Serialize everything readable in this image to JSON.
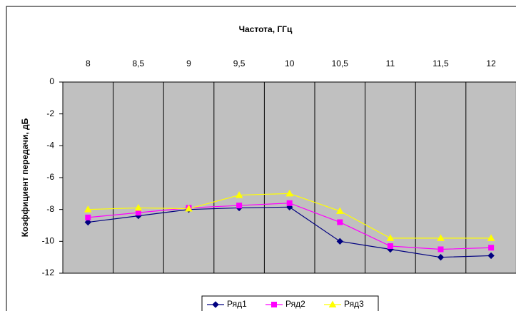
{
  "chart_data": {
    "type": "line",
    "title": "Частота, ГГц",
    "y_label": "Коэффициент передачи, дБ",
    "categories": [
      "8",
      "8,5",
      "9",
      "9,5",
      "10",
      "10,5",
      "11",
      "11,5",
      "12"
    ],
    "series": [
      {
        "name": "Ряд1",
        "color": "#000080",
        "marker": "diamond",
        "values": [
          -8.8,
          -8.4,
          -8.0,
          -7.9,
          -7.85,
          -10.0,
          -10.5,
          -11.0,
          -10.9
        ]
      },
      {
        "name": "Ряд2",
        "color": "#ff00ff",
        "marker": "square",
        "values": [
          -8.5,
          -8.2,
          -7.9,
          -7.75,
          -7.6,
          -8.8,
          -10.3,
          -10.5,
          -10.4
        ]
      },
      {
        "name": "Ряд3",
        "color": "#ffff00",
        "marker": "triangle",
        "values": [
          -8.0,
          -7.9,
          -7.95,
          -7.1,
          -7.0,
          -8.1,
          -9.8,
          -9.8,
          -9.8
        ]
      }
    ],
    "ylim": [
      -12,
      0
    ],
    "yticks": [
      0,
      -2,
      -4,
      -6,
      -8,
      -10,
      -12
    ],
    "grid": false,
    "legend": "bottom"
  }
}
